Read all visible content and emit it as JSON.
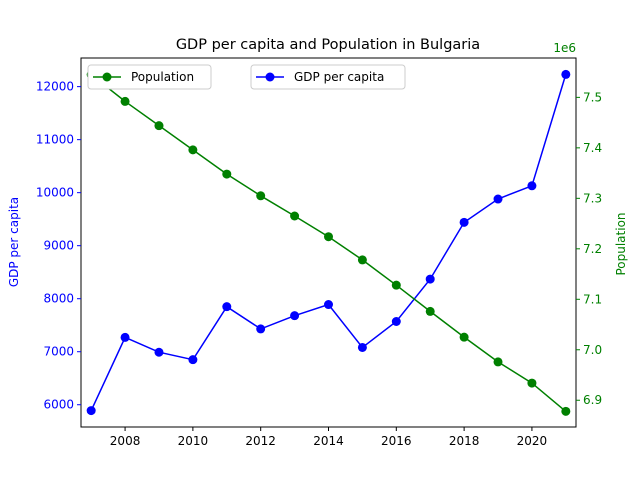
{
  "chart_data": {
    "type": "line",
    "title": "GDP per capita and Population in Bulgaria",
    "x": [
      2007,
      2008,
      2009,
      2010,
      2011,
      2012,
      2013,
      2014,
      2015,
      2016,
      2017,
      2018,
      2019,
      2020,
      2021
    ],
    "xlim": [
      2006.7,
      2021.3
    ],
    "xticks": [
      2008,
      2010,
      2012,
      2014,
      2016,
      2018,
      2020
    ],
    "y_left": {
      "label": "GDP per capita",
      "color": "#0000ff",
      "ylim": [
        5580,
        12540
      ],
      "ticks": [
        6000,
        7000,
        8000,
        9000,
        10000,
        11000,
        12000
      ]
    },
    "y_right": {
      "label": "Population",
      "color": "#008000",
      "offset_label": "1e6",
      "ylim": [
        6.847,
        7.578
      ],
      "ticks": [
        6.9,
        7.0,
        7.1,
        7.2,
        7.3,
        7.4,
        7.5
      ]
    },
    "series": [
      {
        "name": "GDP per capita",
        "axis": "left",
        "color": "#0000ff",
        "values": [
          5890,
          7270,
          6990,
          6850,
          7850,
          7430,
          7680,
          7890,
          7080,
          7570,
          8370,
          9440,
          9880,
          10130,
          12230
        ]
      },
      {
        "name": "Population",
        "axis": "right",
        "color": "#008000",
        "values": [
          7.545,
          7.492,
          7.444,
          7.396,
          7.348,
          7.305,
          7.265,
          7.224,
          7.178,
          7.128,
          7.076,
          7.025,
          6.976,
          6.934,
          6.878
        ]
      }
    ],
    "legends": [
      {
        "entries": [
          "Population"
        ],
        "placement": "upper-left"
      },
      {
        "entries": [
          "GDP per capita"
        ],
        "placement": "upper-center"
      }
    ],
    "grid": false
  }
}
